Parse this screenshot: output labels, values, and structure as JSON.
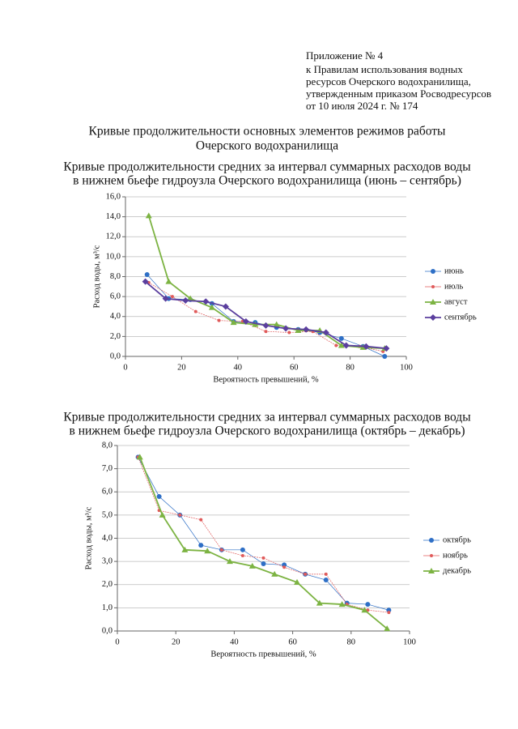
{
  "header": {
    "appendix_lines": [
      "Приложение № 4",
      "к Правилам использования водных",
      "ресурсов Очерского водохранилища,",
      "утвержденным приказом Росводресурсов",
      "от 10 июля 2024 г. № 174"
    ],
    "title_lines": [
      "Кривые продолжительности основных элементов режимов работы",
      "Очерского водохранилища"
    ]
  },
  "chart_data": [
    {
      "type": "line",
      "title": [
        "Кривые продолжительности средних за интервал суммарных расходов воды",
        "в нижнем бьефе гидроузла Очерского водохранилища (июнь – сентябрь)"
      ],
      "x_label": "Вероятность превышений, %",
      "y_label": "Расход воды, м³/с",
      "xlim": [
        0,
        100
      ],
      "xticks": [
        0,
        20,
        40,
        60,
        80,
        100
      ],
      "ylim": [
        0,
        16
      ],
      "yticks": [
        {
          "value": 0,
          "label": "0,0"
        },
        {
          "value": 2,
          "label": "2,0"
        },
        {
          "value": 4,
          "label": "4,0"
        },
        {
          "value": 6,
          "label": "6,0"
        },
        {
          "value": 8,
          "label": "8,0"
        },
        {
          "value": 10,
          "label": "10,0"
        },
        {
          "value": 12,
          "label": "12,0"
        },
        {
          "value": 14,
          "label": "14,0"
        },
        {
          "value": 16,
          "label": "16,0"
        }
      ],
      "grid": true,
      "legend": "right",
      "series": [
        {
          "name": "июнь",
          "color": "#2e6fc6",
          "marker": "circle",
          "x": [
            7.7,
            15.4,
            23.1,
            30.8,
            38.5,
            46.2,
            53.8,
            61.5,
            69.2,
            76.9,
            84.6,
            92.3
          ],
          "values": [
            8.2,
            5.8,
            5.7,
            5.3,
            3.5,
            3.4,
            2.9,
            2.7,
            2.4,
            1.8,
            1.0,
            0.0
          ]
        },
        {
          "name": "июль",
          "color": "#e05a5a",
          "marker": "dot",
          "x": [
            8.3,
            16.7,
            25.0,
            33.3,
            41.7,
            50.0,
            58.3,
            66.7,
            75.0,
            83.3,
            91.7
          ],
          "values": [
            7.4,
            6.0,
            4.5,
            3.6,
            3.5,
            2.5,
            2.4,
            2.5,
            1.1,
            1.0,
            0.5
          ]
        },
        {
          "name": "август",
          "color": "#7cb342",
          "marker": "triangle",
          "x": [
            8.3,
            15.4,
            23.1,
            30.8,
            38.5,
            46.2,
            53.8,
            61.5,
            69.2,
            76.9,
            84.6,
            92.3
          ],
          "values": [
            14.1,
            7.5,
            5.8,
            4.9,
            3.4,
            3.2,
            3.2,
            2.6,
            2.6,
            1.1,
            0.9,
            0.8
          ]
        },
        {
          "name": "сентябрь",
          "color": "#5b3f9e",
          "marker": "diamond",
          "x": [
            7.1,
            14.3,
            21.4,
            28.6,
            35.7,
            42.9,
            50.0,
            57.1,
            64.3,
            71.4,
            78.6,
            85.7,
            92.9
          ],
          "values": [
            7.5,
            5.8,
            5.6,
            5.5,
            5.0,
            3.5,
            3.1,
            2.8,
            2.7,
            2.4,
            1.1,
            1.0,
            0.8
          ]
        }
      ]
    },
    {
      "type": "line",
      "title": [
        "Кривые продолжительности средних за интервал суммарных расходов воды",
        "в нижнем бьефе гидроузла Очерского водохранилища (октябрь – декабрь)"
      ],
      "x_label": "Вероятность превышений, %",
      "y_label": "Расход воды, м³/с",
      "xlim": [
        0,
        100
      ],
      "xticks": [
        0,
        20,
        40,
        60,
        80,
        100
      ],
      "ylim": [
        0,
        8
      ],
      "yticks": [
        {
          "value": 0,
          "label": "0,0"
        },
        {
          "value": 1,
          "label": "1,0"
        },
        {
          "value": 2,
          "label": "2,0"
        },
        {
          "value": 3,
          "label": "3,0"
        },
        {
          "value": 4,
          "label": "4,0"
        },
        {
          "value": 5,
          "label": "5,0"
        },
        {
          "value": 6,
          "label": "6,0"
        },
        {
          "value": 7,
          "label": "7,0"
        },
        {
          "value": 8,
          "label": "8,0"
        }
      ],
      "grid": true,
      "legend": "right",
      "series": [
        {
          "name": "октябрь",
          "color": "#2e6fc6",
          "marker": "circle",
          "x": [
            7.1,
            14.3,
            21.4,
            28.6,
            35.7,
            42.9,
            50.0,
            57.1,
            64.3,
            71.4,
            78.6,
            85.7,
            92.9
          ],
          "values": [
            7.5,
            5.8,
            5.0,
            3.7,
            3.5,
            3.5,
            2.9,
            2.85,
            2.45,
            2.2,
            1.2,
            1.15,
            0.9
          ]
        },
        {
          "name": "ноябрь",
          "color": "#e05a5a",
          "marker": "dot",
          "x": [
            7.1,
            14.3,
            21.4,
            28.6,
            35.7,
            42.9,
            50.0,
            57.1,
            64.3,
            71.4,
            78.6,
            85.7,
            92.9
          ],
          "values": [
            7.5,
            5.2,
            5.0,
            4.8,
            3.5,
            3.25,
            3.15,
            2.75,
            2.45,
            2.45,
            1.15,
            0.9,
            0.8
          ]
        },
        {
          "name": "декабрь",
          "color": "#7cb342",
          "marker": "triangle",
          "x": [
            7.7,
            15.4,
            23.1,
            30.8,
            38.5,
            46.2,
            53.8,
            61.5,
            69.2,
            76.9,
            84.6,
            92.3
          ],
          "values": [
            7.5,
            5.0,
            3.5,
            3.45,
            3.0,
            2.8,
            2.45,
            2.1,
            1.2,
            1.15,
            0.9,
            0.1
          ]
        }
      ]
    }
  ]
}
